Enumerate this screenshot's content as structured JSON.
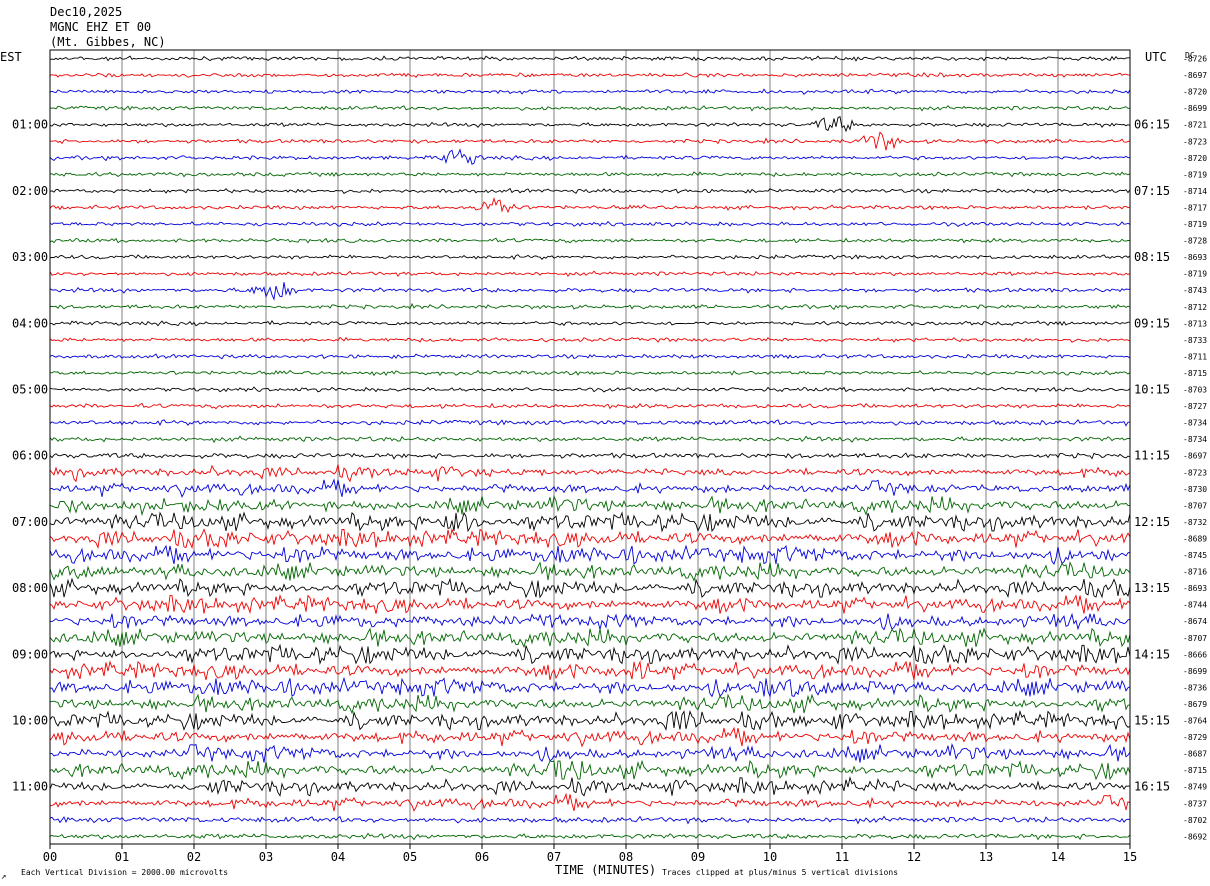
{
  "header": {
    "line1": "Dec10,2025",
    "line2": "MGNC EHZ ET 00",
    "line3": "(Mt. Gibbes, NC)",
    "left_zone": "EST",
    "right_zone": "UTC",
    "dc_label": "DC"
  },
  "footer": {
    "xlabel": "TIME (MINUTES)",
    "scale_note": "Each Vertical Division = 2000.00 microvolts",
    "clip_note": "Traces clipped at plus/minus 5 vertical divisions",
    "corner_mark": "↗"
  },
  "colors": {
    "traces": [
      "#000000",
      "#ee0000",
      "#0000dd",
      "#006600"
    ],
    "grid": "#808080",
    "frame": "#000000",
    "text": "#000000"
  },
  "chart_data": {
    "type": "line",
    "subtype": "helicorder",
    "title": "MGNC EHZ ET 00",
    "xlabel": "TIME (MINUTES)",
    "xlim": [
      0,
      15
    ],
    "x_ticks": [
      "00",
      "01",
      "02",
      "03",
      "04",
      "05",
      "06",
      "07",
      "08",
      "09",
      "10",
      "11",
      "12",
      "13",
      "14",
      "15"
    ],
    "grid": true,
    "row_minutes": 15,
    "rows": 48,
    "left_hour_labels": [
      "01:00",
      "02:00",
      "03:00",
      "04:00",
      "05:00",
      "06:00",
      "07:00",
      "08:00",
      "09:00",
      "10:00",
      "11:00"
    ],
    "right_hour_labels": [
      "06:15",
      "07:15",
      "08:15",
      "09:15",
      "10:15",
      "11:15",
      "12:15",
      "13:15",
      "14:15",
      "15:15",
      "16:15"
    ],
    "hour_label_rows": [
      4,
      8,
      12,
      16,
      20,
      24,
      28,
      32,
      36,
      40,
      44
    ],
    "dc_offsets": [
      "-8726",
      "-8697",
      "-8720",
      "-8699",
      "-8721",
      "-8723",
      "-8720",
      "-8719",
      "-8714",
      "-8717",
      "-8719",
      "-8728",
      "-8693",
      "-8719",
      "-8743",
      "-8712",
      "-8713",
      "-8733",
      "-8711",
      "-8715",
      "-8703",
      "-8727",
      "-8734",
      "-8734",
      "-8697",
      "-8723",
      "-8730",
      "-8707",
      "-8732",
      "-8689",
      "-8745",
      "-8716",
      "-8693",
      "-8744",
      "-8674",
      "-8707",
      "-8666",
      "-8699",
      "-8736",
      "-8679",
      "-8764",
      "-8729",
      "-8687",
      "-8715",
      "-8749",
      "-8737",
      "-8702",
      "-8692"
    ],
    "row_amplitude_level": [
      1.0,
      1.0,
      1.0,
      1.0,
      1.0,
      1.0,
      1.0,
      1.0,
      1.0,
      1.0,
      1.0,
      1.0,
      1.0,
      1.0,
      1.1,
      1.0,
      1.0,
      1.0,
      1.0,
      1.0,
      1.0,
      1.1,
      1.2,
      1.2,
      1.3,
      1.6,
      1.8,
      2.2,
      2.6,
      2.6,
      2.6,
      2.4,
      2.4,
      2.4,
      2.4,
      2.5,
      2.6,
      2.5,
      2.6,
      2.3,
      2.3,
      2.3,
      2.1,
      2.3,
      2.0,
      1.7,
      1.4,
      1.3
    ],
    "events": [
      {
        "row": 4,
        "minute": 10.9,
        "amp": 3
      },
      {
        "row": 5,
        "minute": 11.5,
        "amp": 4
      },
      {
        "row": 6,
        "minute": 5.7,
        "amp": 3
      },
      {
        "row": 9,
        "minute": 6.2,
        "amp": 4
      },
      {
        "row": 14,
        "minute": 3.1,
        "amp": 5
      },
      {
        "row": 28,
        "minute": 5.7,
        "amp": 6
      },
      {
        "row": 37,
        "minute": 8.1,
        "amp": 3
      },
      {
        "row": 38,
        "minute": 10.1,
        "amp": 4
      },
      {
        "row": 40,
        "minute": 8.8,
        "amp": 3
      },
      {
        "row": 43,
        "minute": 7.2,
        "amp": 4
      }
    ]
  }
}
